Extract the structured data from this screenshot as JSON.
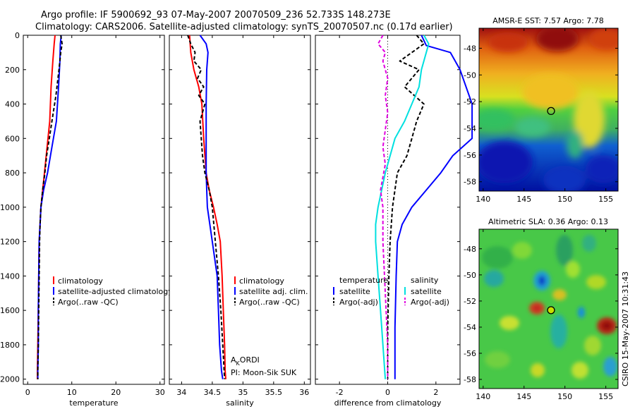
{
  "header": {
    "line1": "Argo profile: IF 5900692_93 07-May-2007 20070509_236 52.733S 148.273E",
    "line2": "Climatology: CARS2006. Satellite-adjusted climatology: synTS_20070507.nc (0.17d earlier)"
  },
  "colors": {
    "red": "#ff0000",
    "blue": "#0000ff",
    "cyan": "#00e0e0",
    "magenta": "#e000e0",
    "black": "#000000"
  },
  "chart_data": [
    {
      "id": "temperature",
      "type": "line",
      "xlabel": "temperature",
      "ylabel": "",
      "xlim": [
        -1,
        31
      ],
      "ylim": [
        2030,
        0
      ],
      "xticks": [
        0,
        10,
        20,
        30
      ],
      "xtick_labels": [
        "0",
        "10",
        "20",
        "30"
      ],
      "yticks": [
        0,
        200,
        400,
        600,
        800,
        1000,
        1200,
        1400,
        1600,
        1800,
        2000
      ],
      "ytick_labels": [
        "0",
        "200",
        "400",
        "600",
        "800",
        "1000",
        "1200",
        "1400",
        "1600",
        "1800",
        "2000"
      ],
      "series": [
        {
          "name": "climatology",
          "color": "red",
          "dash": "",
          "x": [
            6.2,
            6.0,
            5.7,
            5.3,
            5.0,
            4.6,
            4.0,
            3.4,
            3.0,
            2.8,
            2.6,
            2.5,
            2.4,
            2.3,
            2.2,
            2.2
          ],
          "y": [
            0,
            50,
            150,
            300,
            500,
            600,
            750,
            900,
            1000,
            1100,
            1200,
            1400,
            1600,
            1800,
            1950,
            2000
          ]
        },
        {
          "name": "satellite-adjusted climatology",
          "color": "blue",
          "dash": "",
          "x": [
            7.6,
            7.4,
            7.3,
            7.0,
            6.5,
            5.5,
            4.5,
            3.6,
            3.0,
            2.8,
            2.6,
            2.5,
            2.4,
            2.4,
            2.3,
            2.3
          ],
          "y": [
            0,
            50,
            150,
            300,
            500,
            650,
            800,
            900,
            1000,
            1100,
            1200,
            1400,
            1600,
            1800,
            1950,
            2000
          ]
        },
        {
          "name": "Argo(..raw -QC)",
          "color": "black",
          "dash": "5,3",
          "x": [
            7.5,
            7.8,
            7.5,
            7.1,
            6.4,
            5.5,
            4.9,
            4.3,
            3.9,
            3.4,
            3.0,
            2.8,
            2.7,
            2.6,
            2.5,
            2.4,
            2.3,
            2.3
          ],
          "y": [
            0,
            50,
            100,
            200,
            350,
            500,
            600,
            700,
            800,
            900,
            1000,
            1100,
            1200,
            1400,
            1600,
            1800,
            1950,
            2000
          ]
        }
      ],
      "legend": {
        "position": "lower-left",
        "items": [
          "climatology",
          "satellite-adjusted climatology",
          "Argo(..raw -QC)"
        ]
      }
    },
    {
      "id": "salinity",
      "type": "line",
      "xlabel": "salinity",
      "xlim": [
        33.8,
        36.1
      ],
      "ylim": [
        2030,
        0
      ],
      "xticks": [
        34,
        34.5,
        35,
        35.5,
        36
      ],
      "xtick_labels": [
        "34",
        "34.5",
        "35",
        "35.5",
        "36"
      ],
      "yticks": [
        0,
        200,
        400,
        600,
        800,
        1000,
        1200,
        1400,
        1600,
        1800,
        2000
      ],
      "series": [
        {
          "name": "climatology",
          "color": "red",
          "dash": "",
          "x": [
            34.13,
            34.15,
            34.2,
            34.28,
            34.33,
            34.36,
            34.4,
            34.45,
            34.52,
            34.58,
            34.63,
            34.66,
            34.68,
            34.7,
            34.71,
            34.72
          ],
          "y": [
            0,
            100,
            200,
            300,
            400,
            600,
            800,
            900,
            1000,
            1100,
            1200,
            1400,
            1600,
            1800,
            1950,
            2000
          ]
        },
        {
          "name": "satellite adj. clim.",
          "color": "blue",
          "dash": "",
          "x": [
            34.3,
            34.4,
            34.43,
            34.41,
            34.4,
            34.4,
            34.4,
            34.41,
            34.42,
            34.46,
            34.5,
            34.58,
            34.6,
            34.62,
            34.65,
            34.67
          ],
          "y": [
            0,
            50,
            100,
            200,
            400,
            600,
            800,
            900,
            1000,
            1100,
            1200,
            1400,
            1600,
            1800,
            1950,
            2000
          ]
        },
        {
          "name": "Argo(..raw -QC)",
          "color": "black",
          "dash": "5,3",
          "x": [
            34.1,
            34.15,
            34.22,
            34.2,
            34.32,
            34.26,
            34.36,
            34.28,
            34.38,
            34.3,
            34.34,
            34.38,
            34.45,
            34.5,
            34.55,
            34.6,
            34.64,
            34.67,
            34.7
          ],
          "y": [
            0,
            50,
            100,
            150,
            200,
            250,
            300,
            350,
            400,
            500,
            700,
            800,
            900,
            1000,
            1200,
            1400,
            1600,
            1800,
            2000
          ]
        }
      ],
      "legend": {
        "position": "lower-right",
        "items": [
          "climatology",
          "satellite adj. clim.",
          "Argo(..raw -QC)"
        ]
      },
      "annotations": [
        "ORDI",
        "PI: Moon-Sik SUK"
      ],
      "annotation_prefix": "A",
      "annotation_sub": "K"
    },
    {
      "id": "difference",
      "type": "line",
      "xlabel": "difference from climatology",
      "xlim": [
        -3,
        3
      ],
      "ylim": [
        2030,
        0
      ],
      "xticks": [
        -2,
        0,
        2
      ],
      "xtick_labels": [
        "-2",
        "0",
        "2"
      ],
      "yticks": [
        0,
        200,
        400,
        600,
        800,
        1000,
        1200,
        1400,
        1600,
        1800,
        2000
      ],
      "zero_line": true,
      "series": [
        {
          "name": "temperature satellite",
          "color": "blue",
          "dash": "",
          "x": [
            1.4,
            1.6,
            2.6,
            3.0,
            3.5,
            3.5,
            2.7,
            2.2,
            1.6,
            1.0,
            0.6,
            0.4,
            0.35,
            0.3,
            0.3
          ],
          "y": [
            0,
            60,
            100,
            200,
            400,
            600,
            700,
            800,
            900,
            1000,
            1100,
            1200,
            1400,
            1700,
            2000
          ]
        },
        {
          "name": "temperature Argo(-adj)",
          "color": "black",
          "dash": "5,3",
          "x": [
            1.2,
            1.5,
            0.5,
            1.3,
            0.7,
            1.5,
            1.2,
            1.0,
            0.8,
            0.4,
            0.2,
            0.1,
            0.05,
            0.0,
            0.0
          ],
          "y": [
            0,
            50,
            150,
            200,
            300,
            400,
            500,
            600,
            700,
            800,
            1000,
            1200,
            1400,
            1700,
            2000
          ]
        },
        {
          "name": "salinity satellite",
          "color": "cyan",
          "dash": "",
          "x": [
            1.5,
            1.7,
            1.4,
            1.3,
            1.0,
            0.7,
            0.3,
            -0.1,
            -0.4,
            -0.5,
            -0.5,
            -0.4,
            -0.3,
            -0.2,
            -0.1
          ],
          "y": [
            0,
            50,
            200,
            300,
            400,
            500,
            600,
            800,
            1000,
            1100,
            1200,
            1400,
            1600,
            1800,
            2000
          ]
        },
        {
          "name": "salinity Argo(-adj)",
          "color": "magenta",
          "dash": "5,3",
          "x": [
            -0.2,
            -0.4,
            -0.1,
            -0.2,
            0.0,
            -0.1,
            0.0,
            -0.1,
            -0.2,
            -0.1,
            -0.3,
            -0.2,
            -0.2,
            -0.1,
            0.0,
            0.0
          ],
          "y": [
            0,
            50,
            100,
            150,
            250,
            350,
            450,
            550,
            650,
            750,
            900,
            1000,
            1200,
            1500,
            1800,
            2000
          ]
        }
      ],
      "legend": {
        "position": "lower-center",
        "groups": [
          {
            "title": "temperature",
            "items": [
              "satellite",
              "Argo(-adj)"
            ]
          },
          {
            "title": "salinity",
            "items": [
              "satellite",
              "Argo(-adj)"
            ]
          }
        ]
      }
    }
  ],
  "maps": [
    {
      "id": "sst",
      "title": "AMSR-E SST: 7.57 Argo: 7.78",
      "xticks": [
        "140",
        "145",
        "150",
        "155"
      ],
      "yticks": [
        "-48",
        "-50",
        "-52",
        "-54",
        "-56",
        "-58"
      ],
      "xlim": [
        139.5,
        156.5
      ],
      "ylim": [
        -58.7,
        -46.5
      ],
      "marker": {
        "lon": 148.3,
        "lat": -52.7,
        "fill": "none"
      }
    },
    {
      "id": "sla",
      "title": "Altimetric SLA: 0.36 Argo: 0.13",
      "xticks": [
        "140",
        "145",
        "150",
        "155"
      ],
      "yticks": [
        "-48",
        "-50",
        "-52",
        "-54",
        "-56",
        "-58"
      ],
      "xlim": [
        139.5,
        156.5
      ],
      "ylim": [
        -58.7,
        -46.5
      ],
      "marker": {
        "lon": 148.3,
        "lat": -52.7,
        "fill": "#c8e000"
      }
    }
  ],
  "side_stamp": "CSIRO 15-May-2007 10:31:43"
}
